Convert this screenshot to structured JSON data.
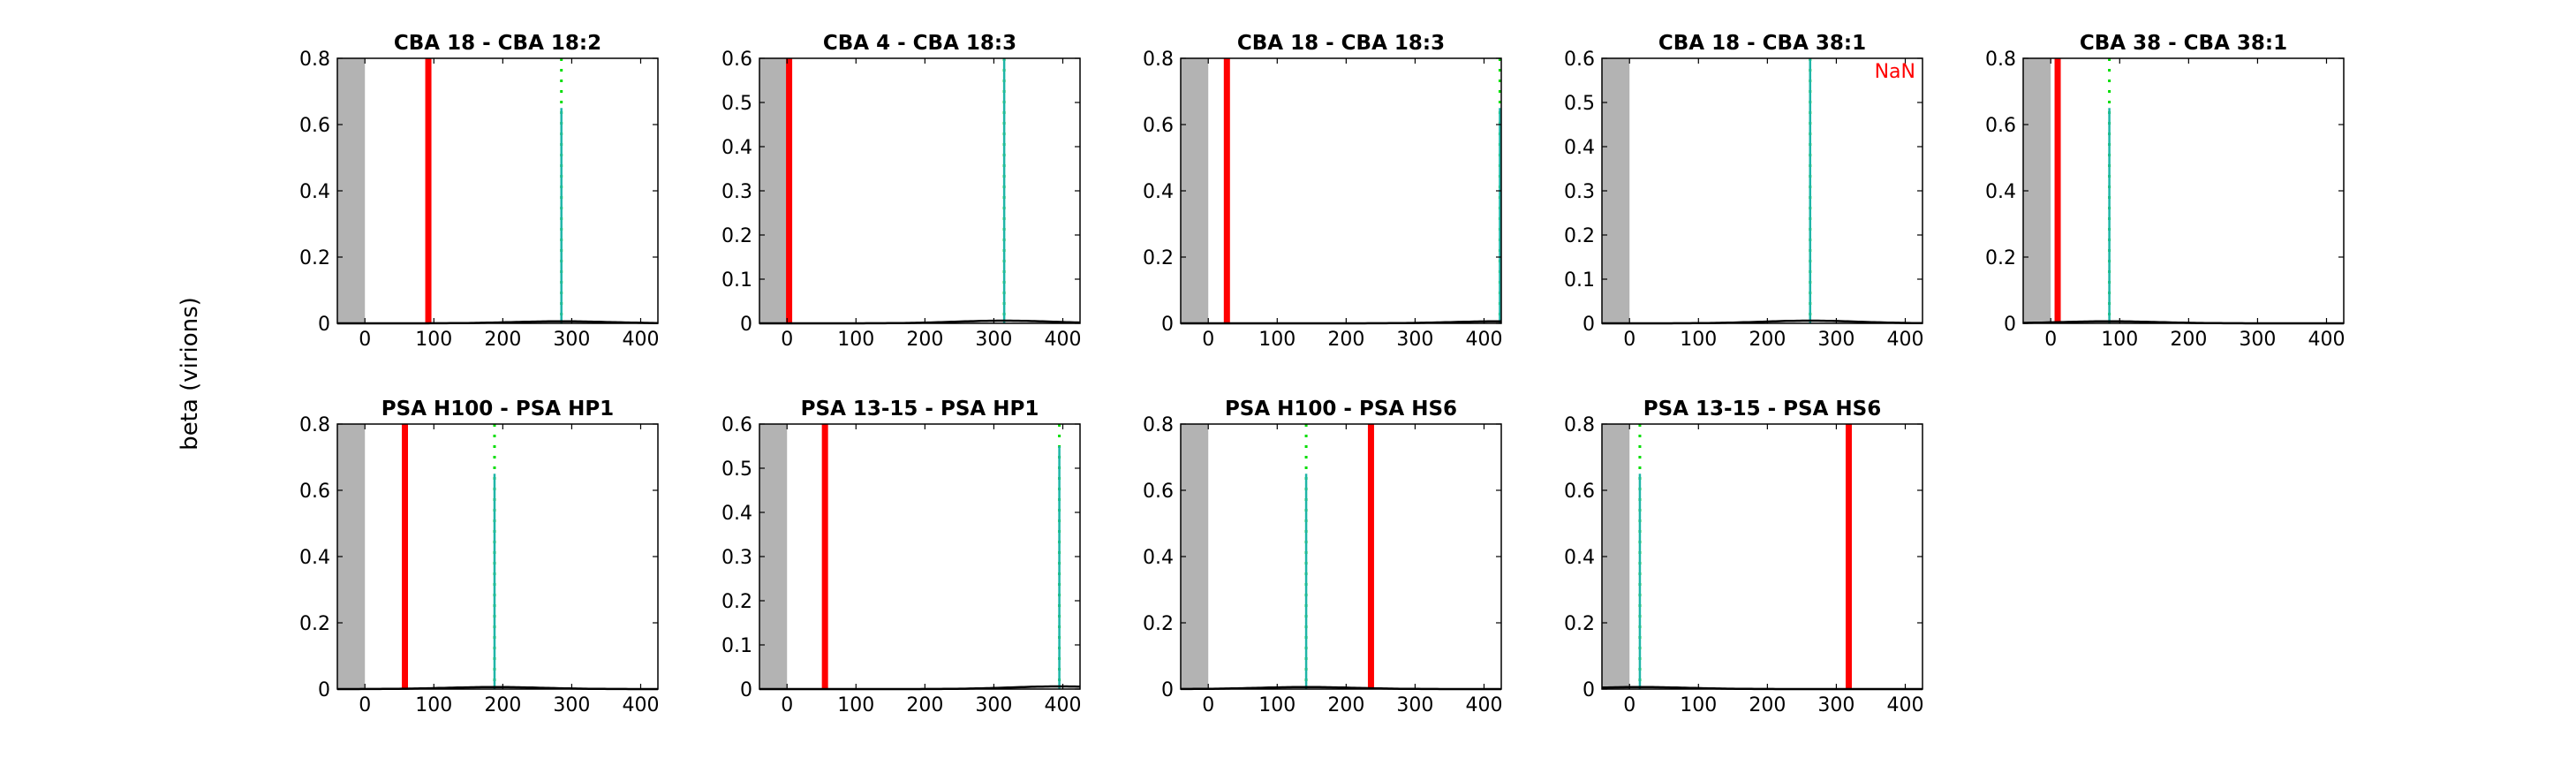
{
  "figure": {
    "ylabel": "beta (virions)"
  },
  "chart_data": [
    {
      "type": "line",
      "title": "CBA 18 - CBA 18:2",
      "xlim": [
        -40,
        425
      ],
      "ylim": [
        0,
        0.8
      ],
      "xticks": [
        0,
        100,
        200,
        300,
        400
      ],
      "yticks": [
        0,
        0.2,
        0.4,
        0.6,
        0.8
      ],
      "ytick_labels": [
        "0",
        "0.2",
        "0.4",
        "0.6",
        "0.8"
      ],
      "shaded_range": [
        -40,
        0
      ],
      "red_line_x": 92,
      "peak_x": 285,
      "peak_height": 0.65,
      "curve_max": 0.006,
      "annotation": ""
    },
    {
      "type": "line",
      "title": "CBA 4 - CBA 18:3",
      "xlim": [
        -40,
        425
      ],
      "ylim": [
        0,
        0.6
      ],
      "xticks": [
        0,
        100,
        200,
        300,
        400
      ],
      "yticks": [
        0,
        0.1,
        0.2,
        0.3,
        0.4,
        0.5,
        0.6
      ],
      "ytick_labels": [
        "0",
        "0.1",
        "0.2",
        "0.3",
        "0.4",
        "0.5",
        "0.6"
      ],
      "shaded_range": [
        -40,
        0
      ],
      "red_line_x": 3,
      "peak_x": 315,
      "peak_height": 0.6,
      "curve_max": 0.006,
      "annotation": ""
    },
    {
      "type": "line",
      "title": "CBA 18 - CBA 18:3",
      "xlim": [
        -40,
        425
      ],
      "ylim": [
        0,
        0.8
      ],
      "xticks": [
        0,
        100,
        200,
        300,
        400
      ],
      "yticks": [
        0,
        0.2,
        0.4,
        0.6,
        0.8
      ],
      "ytick_labels": [
        "0",
        "0.2",
        "0.4",
        "0.6",
        "0.8"
      ],
      "shaded_range": [
        -40,
        0
      ],
      "red_line_x": 27,
      "peak_x": 423,
      "peak_height": 0.65,
      "curve_max": 0.006,
      "annotation": ""
    },
    {
      "type": "line",
      "title": "CBA 18 - CBA 38:1",
      "xlim": [
        -40,
        425
      ],
      "ylim": [
        0,
        0.6
      ],
      "xticks": [
        0,
        100,
        200,
        300,
        400
      ],
      "yticks": [
        0,
        0.1,
        0.2,
        0.3,
        0.4,
        0.5,
        0.6
      ],
      "ytick_labels": [
        "0",
        "0.1",
        "0.2",
        "0.3",
        "0.4",
        "0.5",
        "0.6"
      ],
      "shaded_range": [
        -40,
        0
      ],
      "red_line_x": null,
      "peak_x": 262,
      "peak_height": 0.6,
      "curve_max": 0.006,
      "annotation": "NaN"
    },
    {
      "type": "line",
      "title": "CBA 38 - CBA 38:1",
      "xlim": [
        -40,
        425
      ],
      "ylim": [
        0,
        0.8
      ],
      "xticks": [
        0,
        100,
        200,
        300,
        400
      ],
      "yticks": [
        0,
        0.2,
        0.4,
        0.6,
        0.8
      ],
      "ytick_labels": [
        "0",
        "0.2",
        "0.4",
        "0.6",
        "0.8"
      ],
      "shaded_range": [
        -40,
        0
      ],
      "red_line_x": 10,
      "peak_x": 85,
      "peak_height": 0.65,
      "curve_max": 0.006,
      "annotation": ""
    },
    {
      "type": "line",
      "title": "PSA H100 - PSA HP1",
      "xlim": [
        -40,
        425
      ],
      "ylim": [
        0,
        0.8
      ],
      "xticks": [
        0,
        100,
        200,
        300,
        400
      ],
      "yticks": [
        0,
        0.2,
        0.4,
        0.6,
        0.8
      ],
      "ytick_labels": [
        "0",
        "0.2",
        "0.4",
        "0.6",
        "0.8"
      ],
      "shaded_range": [
        -40,
        0
      ],
      "red_line_x": 58,
      "peak_x": 188,
      "peak_height": 0.65,
      "curve_max": 0.006,
      "annotation": ""
    },
    {
      "type": "line",
      "title": "PSA 13-15 - PSA HP1",
      "xlim": [
        -40,
        425
      ],
      "ylim": [
        0,
        0.6
      ],
      "xticks": [
        0,
        100,
        200,
        300,
        400
      ],
      "yticks": [
        0,
        0.1,
        0.2,
        0.3,
        0.4,
        0.5,
        0.6
      ],
      "ytick_labels": [
        "0",
        "0.1",
        "0.2",
        "0.3",
        "0.4",
        "0.5",
        "0.6"
      ],
      "shaded_range": [
        -40,
        0
      ],
      "red_line_x": 55,
      "peak_x": 395,
      "peak_height": 0.55,
      "curve_max": 0.006,
      "annotation": ""
    },
    {
      "type": "line",
      "title": "PSA H100 - PSA HS6",
      "xlim": [
        -40,
        425
      ],
      "ylim": [
        0,
        0.8
      ],
      "xticks": [
        0,
        100,
        200,
        300,
        400
      ],
      "yticks": [
        0,
        0.2,
        0.4,
        0.6,
        0.8
      ],
      "ytick_labels": [
        "0",
        "0.2",
        "0.4",
        "0.6",
        "0.8"
      ],
      "shaded_range": [
        -40,
        0
      ],
      "red_line_x": 236,
      "peak_x": 142,
      "peak_height": 0.65,
      "curve_max": 0.006,
      "annotation": ""
    },
    {
      "type": "line",
      "title": "PSA 13-15 - PSA HS6",
      "xlim": [
        -40,
        425
      ],
      "ylim": [
        0,
        0.8
      ],
      "xticks": [
        0,
        100,
        200,
        300,
        400
      ],
      "yticks": [
        0,
        0.2,
        0.4,
        0.6,
        0.8
      ],
      "ytick_labels": [
        "0",
        "0.2",
        "0.4",
        "0.6",
        "0.8"
      ],
      "shaded_range": [
        -40,
        0
      ],
      "red_line_x": 318,
      "peak_x": 15,
      "peak_height": 0.65,
      "curve_max": 0.006,
      "annotation": ""
    }
  ]
}
